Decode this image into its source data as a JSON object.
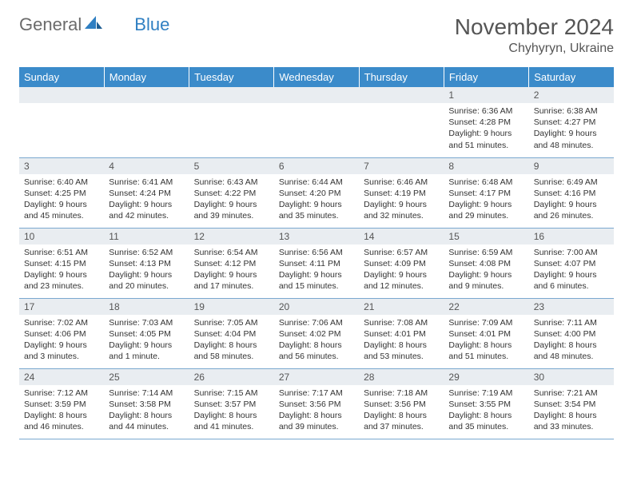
{
  "brand": {
    "part1": "General",
    "part2": "Blue"
  },
  "title": "November 2024",
  "location": "Chyhyryn, Ukraine",
  "colors": {
    "header_bg": "#3b8bca",
    "header_text": "#ffffff",
    "daynum_bg": "#e9edf1",
    "row_border": "#7aa8cf",
    "body_text": "#333333",
    "title_text": "#555555",
    "logo_gray": "#6b6b6b",
    "logo_blue": "#2f7fc2"
  },
  "weekdays": [
    "Sunday",
    "Monday",
    "Tuesday",
    "Wednesday",
    "Thursday",
    "Friday",
    "Saturday"
  ],
  "weeks": [
    [
      null,
      null,
      null,
      null,
      null,
      {
        "n": "1",
        "sr": "6:36 AM",
        "ss": "4:28 PM",
        "dl": "9 hours and 51 minutes."
      },
      {
        "n": "2",
        "sr": "6:38 AM",
        "ss": "4:27 PM",
        "dl": "9 hours and 48 minutes."
      }
    ],
    [
      {
        "n": "3",
        "sr": "6:40 AM",
        "ss": "4:25 PM",
        "dl": "9 hours and 45 minutes."
      },
      {
        "n": "4",
        "sr": "6:41 AM",
        "ss": "4:24 PM",
        "dl": "9 hours and 42 minutes."
      },
      {
        "n": "5",
        "sr": "6:43 AM",
        "ss": "4:22 PM",
        "dl": "9 hours and 39 minutes."
      },
      {
        "n": "6",
        "sr": "6:44 AM",
        "ss": "4:20 PM",
        "dl": "9 hours and 35 minutes."
      },
      {
        "n": "7",
        "sr": "6:46 AM",
        "ss": "4:19 PM",
        "dl": "9 hours and 32 minutes."
      },
      {
        "n": "8",
        "sr": "6:48 AM",
        "ss": "4:17 PM",
        "dl": "9 hours and 29 minutes."
      },
      {
        "n": "9",
        "sr": "6:49 AM",
        "ss": "4:16 PM",
        "dl": "9 hours and 26 minutes."
      }
    ],
    [
      {
        "n": "10",
        "sr": "6:51 AM",
        "ss": "4:15 PM",
        "dl": "9 hours and 23 minutes."
      },
      {
        "n": "11",
        "sr": "6:52 AM",
        "ss": "4:13 PM",
        "dl": "9 hours and 20 minutes."
      },
      {
        "n": "12",
        "sr": "6:54 AM",
        "ss": "4:12 PM",
        "dl": "9 hours and 17 minutes."
      },
      {
        "n": "13",
        "sr": "6:56 AM",
        "ss": "4:11 PM",
        "dl": "9 hours and 15 minutes."
      },
      {
        "n": "14",
        "sr": "6:57 AM",
        "ss": "4:09 PM",
        "dl": "9 hours and 12 minutes."
      },
      {
        "n": "15",
        "sr": "6:59 AM",
        "ss": "4:08 PM",
        "dl": "9 hours and 9 minutes."
      },
      {
        "n": "16",
        "sr": "7:00 AM",
        "ss": "4:07 PM",
        "dl": "9 hours and 6 minutes."
      }
    ],
    [
      {
        "n": "17",
        "sr": "7:02 AM",
        "ss": "4:06 PM",
        "dl": "9 hours and 3 minutes."
      },
      {
        "n": "18",
        "sr": "7:03 AM",
        "ss": "4:05 PM",
        "dl": "9 hours and 1 minute."
      },
      {
        "n": "19",
        "sr": "7:05 AM",
        "ss": "4:04 PM",
        "dl": "8 hours and 58 minutes."
      },
      {
        "n": "20",
        "sr": "7:06 AM",
        "ss": "4:02 PM",
        "dl": "8 hours and 56 minutes."
      },
      {
        "n": "21",
        "sr": "7:08 AM",
        "ss": "4:01 PM",
        "dl": "8 hours and 53 minutes."
      },
      {
        "n": "22",
        "sr": "7:09 AM",
        "ss": "4:01 PM",
        "dl": "8 hours and 51 minutes."
      },
      {
        "n": "23",
        "sr": "7:11 AM",
        "ss": "4:00 PM",
        "dl": "8 hours and 48 minutes."
      }
    ],
    [
      {
        "n": "24",
        "sr": "7:12 AM",
        "ss": "3:59 PM",
        "dl": "8 hours and 46 minutes."
      },
      {
        "n": "25",
        "sr": "7:14 AM",
        "ss": "3:58 PM",
        "dl": "8 hours and 44 minutes."
      },
      {
        "n": "26",
        "sr": "7:15 AM",
        "ss": "3:57 PM",
        "dl": "8 hours and 41 minutes."
      },
      {
        "n": "27",
        "sr": "7:17 AM",
        "ss": "3:56 PM",
        "dl": "8 hours and 39 minutes."
      },
      {
        "n": "28",
        "sr": "7:18 AM",
        "ss": "3:56 PM",
        "dl": "8 hours and 37 minutes."
      },
      {
        "n": "29",
        "sr": "7:19 AM",
        "ss": "3:55 PM",
        "dl": "8 hours and 35 minutes."
      },
      {
        "n": "30",
        "sr": "7:21 AM",
        "ss": "3:54 PM",
        "dl": "8 hours and 33 minutes."
      }
    ]
  ],
  "labels": {
    "sunrise": "Sunrise:",
    "sunset": "Sunset:",
    "daylight": "Daylight:"
  }
}
